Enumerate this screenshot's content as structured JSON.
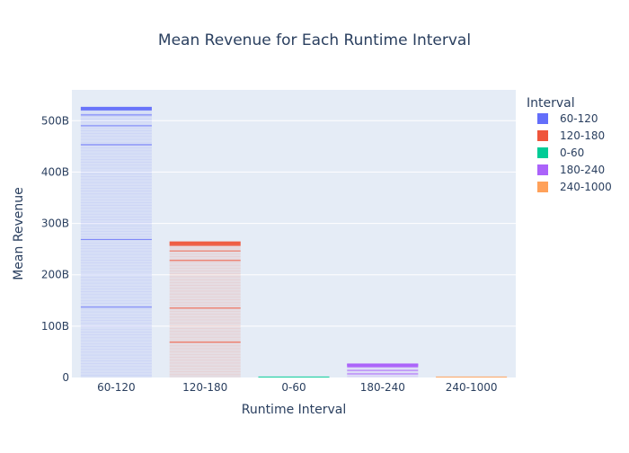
{
  "chart_data": {
    "type": "bar",
    "title": "Mean Revenue for Each Runtime Interval",
    "xlabel": "Runtime Interval",
    "ylabel": "Mean Revenue",
    "categories": [
      "60-120",
      "120-180",
      "0-60",
      "180-240",
      "240-1000"
    ],
    "ylim": [
      0,
      560
    ],
    "yunit": "B",
    "yticks": [
      0,
      100,
      200,
      300,
      400,
      500
    ],
    "ytick_labels": [
      "0",
      "100B",
      "200B",
      "300B",
      "400B",
      "500B"
    ],
    "grid": true,
    "legend": {
      "title": "Interval",
      "position": "right",
      "entries": [
        "60-120",
        "120-180",
        "0-60",
        "180-240",
        "240-1000"
      ]
    },
    "series": [
      {
        "name": "60-120",
        "color": "#636efa",
        "total": 527
      },
      {
        "name": "120-180",
        "color": "#EF553B",
        "total": 265
      },
      {
        "name": "0-60",
        "color": "#00cc96",
        "total": 1
      },
      {
        "name": "180-240",
        "color": "#ab63fa",
        "total": 27
      },
      {
        "name": "240-1000",
        "color": "#FFA15A",
        "total": 1
      }
    ],
    "plot_background": "#e5ecf6",
    "note": ""
  }
}
